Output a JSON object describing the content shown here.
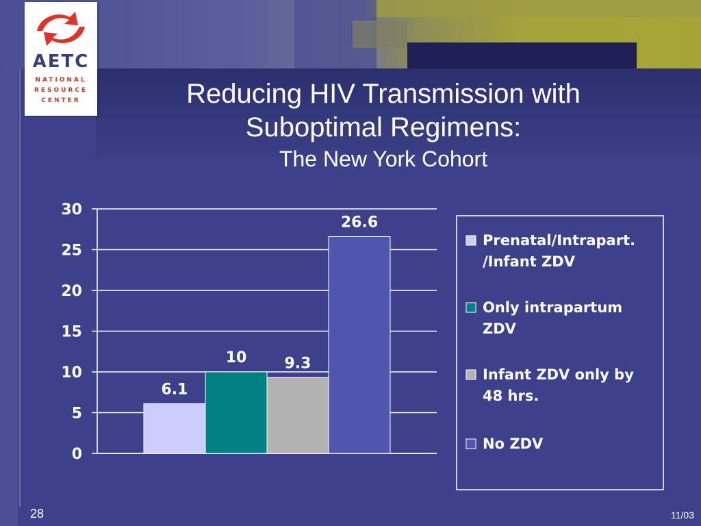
{
  "logo": {
    "name": "AETC",
    "sub1": "NATIONAL",
    "sub2": "RESOURCE",
    "sub3": "CENTER"
  },
  "slide": {
    "title_line1": "Reducing HIV Transmission with",
    "title_line2": "Suboptimal Regimens:",
    "subtitle": "The New York Cohort",
    "page_number": "28",
    "date": "11/03"
  },
  "chart_data": {
    "type": "bar",
    "categories": [
      "Prenatal/Intrapart. /Infant ZDV",
      "Only intrapartum ZDV",
      "Infant ZDV only by 48 hrs.",
      "No ZDV"
    ],
    "values": [
      6.1,
      10,
      9.3,
      26.6
    ],
    "data_labels": [
      "6.1",
      "10",
      "9.3",
      "26.6"
    ],
    "legend": [
      {
        "line1": "Prenatal/Intrapart.",
        "line2": "/Infant ZDV",
        "color": "#ccccff"
      },
      {
        "line1": "Only intrapartum",
        "line2": "ZDV",
        "color": "#008080"
      },
      {
        "line1": "Infant ZDV only by",
        "line2": "48 hrs.",
        "color": "#b2b2b2"
      },
      {
        "line1": "No ZDV",
        "line2": "",
        "color": "#5056ad"
      }
    ],
    "yticks": [
      "0",
      "5",
      "10",
      "15",
      "20",
      "25",
      "30"
    ],
    "ylim": [
      0,
      30
    ],
    "grid": true,
    "legend_position": "right",
    "colors": {
      "background": "#3b3f86",
      "grid": "#ffffff",
      "text": "#ffffff"
    }
  }
}
